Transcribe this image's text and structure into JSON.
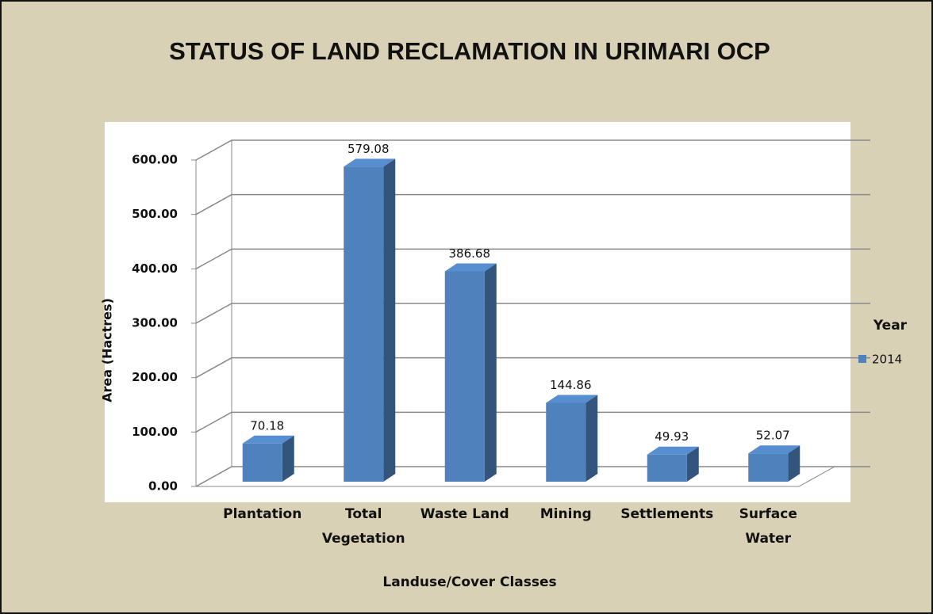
{
  "chart_data": {
    "type": "bar",
    "title": "STATUS OF LAND RECLAMATION IN URIMARI OCP",
    "x_label": "Landuse/Cover Classes",
    "y_label": "Area (Hactres)",
    "legend_title": "Year",
    "categories": [
      "Plantation",
      "Total Vegetation",
      "Waste Land",
      "Mining",
      "Settlements",
      "Surface Water"
    ],
    "series": [
      {
        "name": "2014",
        "color": "#4f81bd",
        "values": [
          70.18,
          579.08,
          386.68,
          144.86,
          49.93,
          52.07
        ]
      }
    ],
    "ylim": [
      0,
      600
    ],
    "yticks": [
      {
        "value": 0,
        "label": "0.00"
      },
      {
        "value": 100,
        "label": "100.00"
      },
      {
        "value": 200,
        "label": "200.00"
      },
      {
        "value": 300,
        "label": "300.00"
      },
      {
        "value": 400,
        "label": "400.00"
      },
      {
        "value": 500,
        "label": "500.00"
      },
      {
        "value": 600,
        "label": "600.00"
      }
    ],
    "grid": true,
    "legend": "right"
  }
}
